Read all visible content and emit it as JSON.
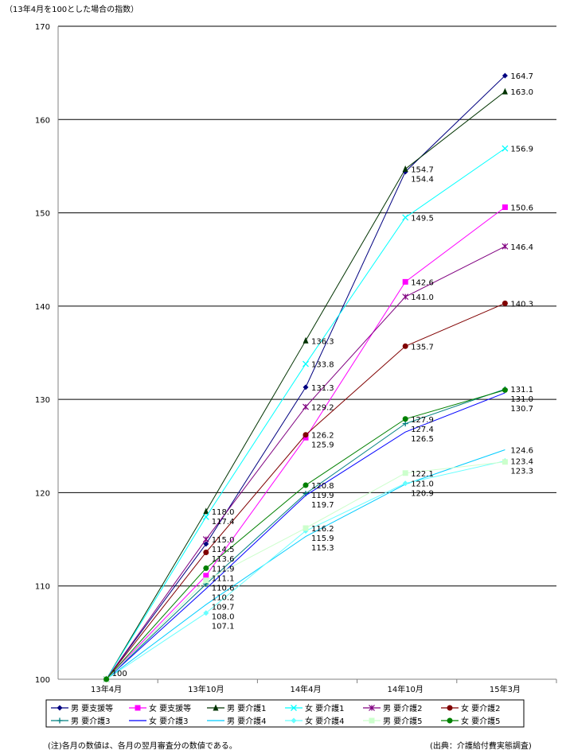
{
  "chart_data": {
    "type": "line",
    "title": "",
    "ylabel": "（13年4月を100とした場合の指数）",
    "xlabel": "",
    "ylim": [
      100,
      170
    ],
    "yticks": [
      100,
      110,
      120,
      130,
      140,
      150,
      160,
      170
    ],
    "grid": true,
    "legend_position": "bottom",
    "categories": [
      "13年4月",
      "13年10月",
      "14年4月",
      "14年10月",
      "15年3月"
    ],
    "series": [
      {
        "name": "男 要支援等",
        "color": "#000080",
        "marker": "diamond",
        "values": [
          100,
          114.5,
          131.3,
          154.4,
          164.7
        ]
      },
      {
        "name": "女 要支援等",
        "color": "#FF00FF",
        "marker": "square",
        "values": [
          100,
          111.1,
          125.9,
          142.6,
          150.6
        ]
      },
      {
        "name": "男 要介護1",
        "color": "#003300",
        "marker": "triangle",
        "values": [
          100,
          118.0,
          136.3,
          154.7,
          163.0
        ]
      },
      {
        "name": "女 要介護1",
        "color": "#00FFFF",
        "marker": "x",
        "values": [
          100,
          117.4,
          133.8,
          149.5,
          156.9
        ]
      },
      {
        "name": "男 要介護2",
        "color": "#800080",
        "marker": "asterisk",
        "values": [
          100,
          115.0,
          129.2,
          141.0,
          146.4
        ]
      },
      {
        "name": "女 要介護2",
        "color": "#800000",
        "marker": "circle",
        "values": [
          100,
          113.6,
          126.2,
          135.7,
          140.3
        ]
      },
      {
        "name": "男 要介護3",
        "color": "#008080",
        "marker": "plus",
        "values": [
          100,
          110.2,
          119.9,
          127.4,
          131.1
        ]
      },
      {
        "name": "女 要介護3",
        "color": "#0000FF",
        "marker": "none",
        "values": [
          100,
          109.7,
          119.7,
          126.5,
          130.7
        ]
      },
      {
        "name": "男 要介護4",
        "color": "#00CCFF",
        "marker": "none",
        "values": [
          100,
          108.0,
          115.3,
          120.9,
          124.6
        ]
      },
      {
        "name": "女 要介護4",
        "color": "#66FFFF",
        "marker": "diamond",
        "values": [
          100,
          107.1,
          115.9,
          121.0,
          123.4
        ]
      },
      {
        "name": "男 要介護5",
        "color": "#CCFFCC",
        "marker": "square",
        "values": [
          100,
          110.6,
          116.2,
          122.1,
          123.3
        ]
      },
      {
        "name": "女 要介護5",
        "color": "#008000",
        "marker": "circle",
        "values": [
          100,
          111.9,
          120.8,
          127.9,
          131.0
        ]
      }
    ],
    "first_point_label": "100"
  },
  "notes": {
    "left": "(注)各月の数値は、各月の翌月審査分の数値である。",
    "right": "(出典：介護給付費実態調査)"
  }
}
